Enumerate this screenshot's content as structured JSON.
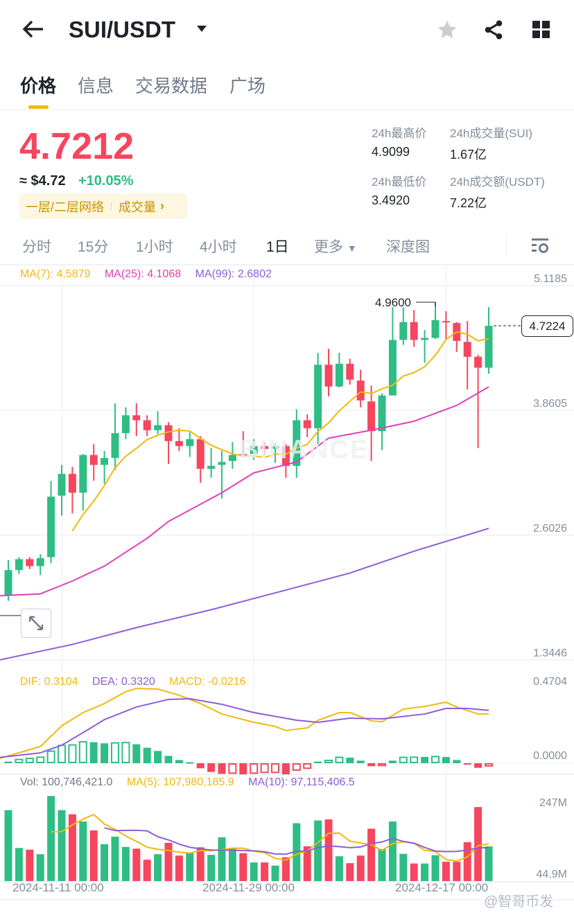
{
  "header": {
    "title": "SUI/USDT",
    "icons": [
      "back-arrow-icon",
      "caret-down-icon",
      "star-icon",
      "share-icon",
      "grid-icon"
    ]
  },
  "tabs": [
    {
      "label": "价格",
      "active": true
    },
    {
      "label": "信息"
    },
    {
      "label": "交易数据"
    },
    {
      "label": "广场"
    }
  ],
  "price": {
    "last": "4.7212",
    "usd": "≈ $4.72",
    "change": "+10.05%",
    "tag_category": "一层/二层网络",
    "tag_volume": "成交量"
  },
  "stats": {
    "high_label": "24h最高价",
    "high": "4.9099",
    "low_label": "24h最低价",
    "low": "3.4920",
    "vol_base_label": "24h成交量(SUI)",
    "vol_base": "1.67亿",
    "vol_quote_label": "24h成交额(USDT)",
    "vol_quote": "7.22亿"
  },
  "intervals": [
    {
      "label": "分时"
    },
    {
      "label": "15分"
    },
    {
      "label": "1小时"
    },
    {
      "label": "4小时"
    },
    {
      "label": "1日",
      "active": true
    },
    {
      "label": "更多"
    },
    {
      "label": "深度图"
    }
  ],
  "colors": {
    "up": "#2EBD85",
    "down": "#F6465D",
    "ma7": "#F0B90B",
    "ma25": "#E13FB8",
    "ma99": "#8E5CD9",
    "accent": "#F0B90B"
  },
  "chart_data": {
    "type": "candlestick",
    "watermark": "BINANCE",
    "legend": {
      "ma7": "MA(7): 4.5879",
      "ma25": "MA(25): 4.1068",
      "ma99": "MA(99): 2.6802"
    },
    "price_axis": [
      "5.1185",
      "3.8605",
      "2.6026",
      "1.3446"
    ],
    "high_marker": "4.9600",
    "last_price_marker": "4.7224",
    "x_tick_labels": [
      "2024-11-11 00:00",
      "2024-11-29 00:00",
      "2024-12-17 00:00"
    ],
    "columns": [
      "date",
      "open",
      "high",
      "low",
      "close",
      "volume_M",
      "macd_hist"
    ],
    "candles": [
      [
        "2024-11-06",
        2.01,
        2.36,
        1.95,
        2.26,
        206,
        0.01
      ],
      [
        "2024-11-07",
        2.26,
        2.39,
        2.22,
        2.37,
        96,
        0.028
      ],
      [
        "2024-11-08",
        2.37,
        2.39,
        2.27,
        2.3,
        91,
        0.035
      ],
      [
        "2024-11-09",
        2.3,
        2.42,
        2.21,
        2.38,
        78,
        0.042
      ],
      [
        "2024-11-10",
        2.39,
        3.16,
        2.33,
        3.0,
        247,
        0.08
      ],
      [
        "2024-11-11",
        3.01,
        3.32,
        2.81,
        3.23,
        206,
        0.116
      ],
      [
        "2024-11-12",
        3.23,
        3.3,
        2.83,
        3.04,
        194,
        0.119
      ],
      [
        "2024-11-13",
        3.04,
        3.43,
        2.86,
        3.42,
        173,
        0.139
      ],
      [
        "2024-11-14",
        3.42,
        3.53,
        3.16,
        3.32,
        147,
        0.132
      ],
      [
        "2024-11-15",
        3.32,
        3.46,
        3.13,
        3.39,
        107,
        0.125
      ],
      [
        "2024-11-16",
        3.39,
        3.94,
        3.27,
        3.64,
        129,
        0.132
      ],
      [
        "2024-11-17",
        3.64,
        3.9,
        3.58,
        3.82,
        99,
        0.134
      ],
      [
        "2024-11-18",
        3.82,
        3.94,
        3.61,
        3.77,
        94,
        0.119
      ],
      [
        "2024-11-19",
        3.77,
        3.82,
        3.61,
        3.67,
        62,
        0.097
      ],
      [
        "2024-11-20",
        3.67,
        3.86,
        3.63,
        3.72,
        78,
        0.077
      ],
      [
        "2024-11-21",
        3.72,
        3.75,
        3.33,
        3.56,
        111,
        0.046
      ],
      [
        "2024-11-22",
        3.56,
        3.69,
        3.46,
        3.51,
        74,
        0.02
      ],
      [
        "2024-11-23",
        3.51,
        3.65,
        3.4,
        3.58,
        81,
        0.006
      ],
      [
        "2024-11-24",
        3.58,
        3.61,
        3.14,
        3.28,
        98,
        -0.032
      ],
      [
        "2024-11-25",
        3.28,
        3.49,
        3.19,
        3.31,
        76,
        -0.055
      ],
      [
        "2024-11-26",
        3.32,
        3.46,
        2.98,
        3.35,
        127,
        -0.067
      ],
      [
        "2024-11-27",
        3.36,
        3.55,
        3.28,
        3.42,
        95,
        -0.067
      ],
      [
        "2024-11-28",
        3.43,
        3.66,
        3.4,
        3.42,
        81,
        -0.07
      ],
      [
        "2024-11-29",
        3.43,
        3.58,
        3.37,
        3.51,
        54,
        -0.067
      ],
      [
        "2024-11-30",
        3.51,
        3.55,
        3.42,
        3.48,
        54,
        -0.062
      ],
      [
        "2024-12-01",
        3.48,
        3.54,
        3.34,
        3.51,
        44.9,
        -0.062
      ],
      [
        "2024-12-02",
        3.51,
        3.53,
        3.19,
        3.31,
        69,
        -0.07
      ],
      [
        "2024-12-03",
        3.31,
        3.88,
        3.19,
        3.77,
        168,
        -0.048
      ],
      [
        "2024-12-04",
        3.77,
        3.83,
        3.6,
        3.69,
        101,
        -0.036
      ],
      [
        "2024-12-05",
        3.69,
        4.45,
        3.53,
        4.33,
        176,
        0.01
      ],
      [
        "2024-12-06",
        4.33,
        4.49,
        4.01,
        4.11,
        179,
        0.022
      ],
      [
        "2024-12-07",
        4.11,
        4.45,
        4.1,
        4.34,
        72,
        0.041
      ],
      [
        "2024-12-08",
        4.34,
        4.39,
        4.13,
        4.18,
        52,
        0.035
      ],
      [
        "2024-12-09",
        4.17,
        4.28,
        3.9,
        3.97,
        74,
        0.016
      ],
      [
        "2024-12-10",
        3.96,
        4.12,
        3.36,
        3.66,
        152,
        -0.019
      ],
      [
        "2024-12-11",
        3.66,
        4.04,
        3.47,
        4.02,
        93,
        -0.019
      ],
      [
        "2024-12-12",
        4.02,
        4.91,
        4.02,
        4.58,
        173,
        0.016
      ],
      [
        "2024-12-13",
        4.58,
        4.91,
        4.53,
        4.76,
        79,
        0.041
      ],
      [
        "2024-12-14",
        4.76,
        4.88,
        4.51,
        4.58,
        51,
        0.042
      ],
      [
        "2024-12-15",
        4.58,
        4.68,
        4.35,
        4.6,
        51,
        0.039
      ],
      [
        "2024-12-16",
        4.6,
        4.96,
        4.59,
        4.78,
        75,
        0.046
      ],
      [
        "2024-12-17",
        4.77,
        4.87,
        4.58,
        4.76,
        56,
        0.039
      ],
      [
        "2024-12-18",
        4.75,
        4.76,
        4.46,
        4.57,
        56,
        0.02
      ],
      [
        "2024-12-19",
        4.56,
        4.77,
        4.08,
        4.41,
        113,
        -0.009
      ],
      [
        "2024-12-20",
        4.41,
        4.43,
        3.49,
        4.3,
        215,
        -0.029
      ],
      [
        "2024-12-21",
        4.3,
        4.91,
        4.24,
        4.7224,
        100.746421,
        -0.0216
      ]
    ],
    "ma25": [
      [
        "2024-11-05",
        2.0
      ],
      [
        "2024-11-09",
        2.02
      ],
      [
        "2024-11-12",
        2.15
      ],
      [
        "2024-11-15",
        2.3
      ],
      [
        "2024-11-19",
        2.58
      ],
      [
        "2024-11-21",
        2.75
      ],
      [
        "2024-11-26",
        3.04
      ],
      [
        "2024-11-29",
        3.24
      ],
      [
        "2024-12-03",
        3.35
      ],
      [
        "2024-12-06",
        3.59
      ],
      [
        "2024-12-10",
        3.67
      ],
      [
        "2024-12-14",
        3.76
      ],
      [
        "2024-12-18",
        3.92
      ],
      [
        "2024-12-21",
        4.1068
      ]
    ],
    "ma99": [
      [
        "2024-11-05",
        1.35
      ],
      [
        "2024-11-12",
        1.51
      ],
      [
        "2024-11-18",
        1.68
      ],
      [
        "2024-11-25",
        1.86
      ],
      [
        "2024-12-01",
        2.03
      ],
      [
        "2024-12-08",
        2.23
      ],
      [
        "2024-12-14",
        2.45
      ],
      [
        "2024-12-21",
        2.6802
      ]
    ],
    "macd": {
      "legend": {
        "dif": "DIF: 0.3104",
        "dea": "DEA: 0.3320",
        "macd": "MACD: -0.0216"
      },
      "axis": [
        "0.4704",
        "0.0000"
      ],
      "dif": [
        [
          "2024-11-05",
          0.026
        ],
        [
          "2024-11-09",
          0.105
        ],
        [
          "2024-11-11",
          0.235
        ],
        [
          "2024-11-13",
          0.318
        ],
        [
          "2024-11-15",
          0.375
        ],
        [
          "2024-11-17",
          0.449
        ],
        [
          "2024-11-18",
          0.47
        ],
        [
          "2024-11-20",
          0.466
        ],
        [
          "2024-11-22",
          0.427
        ],
        [
          "2024-11-24",
          0.375
        ],
        [
          "2024-11-26",
          0.309
        ],
        [
          "2024-11-29",
          0.257
        ],
        [
          "2024-12-01",
          0.231
        ],
        [
          "2024-12-02",
          0.205
        ],
        [
          "2024-12-04",
          0.222
        ],
        [
          "2024-12-05",
          0.27
        ],
        [
          "2024-12-07",
          0.318
        ],
        [
          "2024-12-08",
          0.318
        ],
        [
          "2024-12-10",
          0.266
        ],
        [
          "2024-12-11",
          0.261
        ],
        [
          "2024-12-13",
          0.34
        ],
        [
          "2024-12-15",
          0.357
        ],
        [
          "2024-12-17",
          0.383
        ],
        [
          "2024-12-18",
          0.353
        ],
        [
          "2024-12-20",
          0.309
        ],
        [
          "2024-12-21",
          0.3104
        ]
      ],
      "dea": [
        [
          "2024-11-05",
          0.035
        ],
        [
          "2024-11-09",
          0.065
        ],
        [
          "2024-11-11",
          0.113
        ],
        [
          "2024-11-13",
          0.192
        ],
        [
          "2024-11-15",
          0.274
        ],
        [
          "2024-11-18",
          0.353
        ],
        [
          "2024-11-21",
          0.401
        ],
        [
          "2024-11-23",
          0.405
        ],
        [
          "2024-11-26",
          0.37
        ],
        [
          "2024-11-29",
          0.318
        ],
        [
          "2024-12-03",
          0.27
        ],
        [
          "2024-12-05",
          0.257
        ],
        [
          "2024-12-08",
          0.283
        ],
        [
          "2024-12-11",
          0.279
        ],
        [
          "2024-12-15",
          0.309
        ],
        [
          "2024-12-17",
          0.344
        ],
        [
          "2024-12-19",
          0.344
        ],
        [
          "2024-12-21",
          0.332
        ]
      ]
    },
    "volume": {
      "legend": {
        "vol": "Vol: 100,746,421.0",
        "ma5": "MA(5): 107,980,185.9",
        "ma10": "MA(10): 97,115,406.5"
      },
      "axis": [
        "247M",
        "44.9M"
      ]
    }
  },
  "watermark": "@智哥币发"
}
